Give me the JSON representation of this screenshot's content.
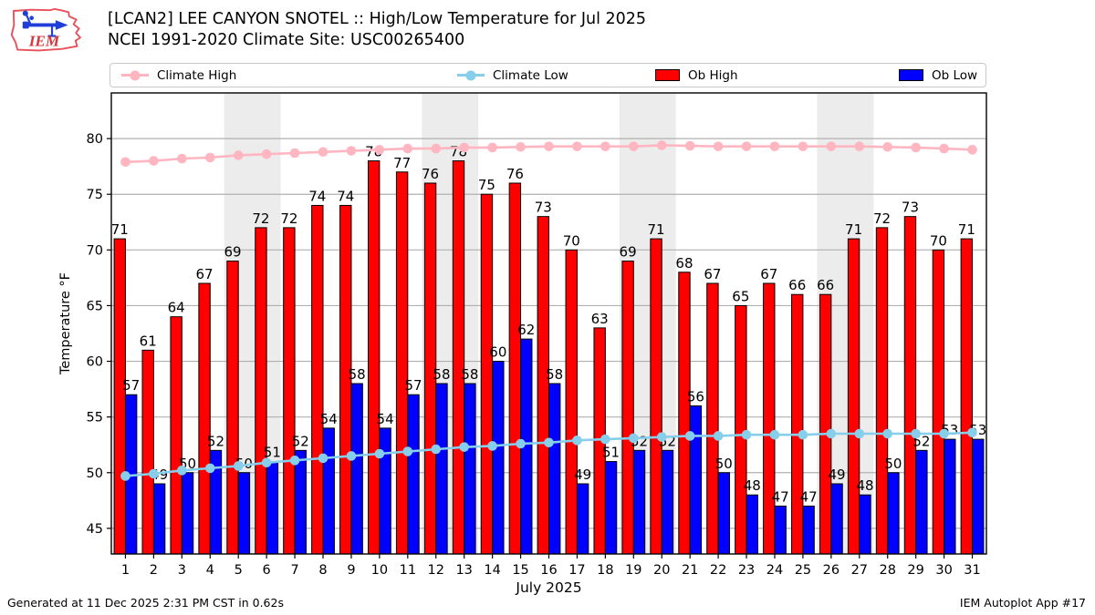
{
  "header": {
    "title": "[LCAN2] LEE CANYON SNOTEL :: High/Low Temperature for Jul 2025",
    "subtitle": "NCEI 1991-2020 Climate Site: USC00265400",
    "logo_text": "IEM"
  },
  "legend": {
    "items": [
      {
        "label": "Climate High",
        "type": "line",
        "color": "#ffb6c1"
      },
      {
        "label": "Climate Low",
        "type": "line",
        "color": "#87ceeb"
      },
      {
        "label": "Ob High",
        "type": "patch",
        "color": "#ff0000"
      },
      {
        "label": "Ob Low",
        "type": "patch",
        "color": "#0000ff"
      }
    ]
  },
  "chart_data": {
    "type": "bar",
    "title": "[LCAN2] LEE CANYON SNOTEL :: High/Low Temperature for Jul 2025",
    "subtitle": "NCEI 1991-2020 Climate Site: USC00265400",
    "xlabel": "July 2025",
    "ylabel": "Temperature °F",
    "x": [
      1,
      2,
      3,
      4,
      5,
      6,
      7,
      8,
      9,
      10,
      11,
      12,
      13,
      14,
      15,
      16,
      17,
      18,
      19,
      20,
      21,
      22,
      23,
      24,
      25,
      26,
      27,
      28,
      29,
      30,
      31
    ],
    "ylim": [
      42.7,
      84.1
    ],
    "yticks": [
      45,
      50,
      55,
      60,
      65,
      70,
      75,
      80
    ],
    "grid": true,
    "legend_position": "top",
    "weekend_shading_days": [
      [
        5,
        6
      ],
      [
        12,
        13
      ],
      [
        19,
        20
      ],
      [
        26,
        27
      ]
    ],
    "band_color": "#ececec",
    "grid_color": "#b0b0b0",
    "series": [
      {
        "name": "Climate High",
        "type": "line",
        "color": "#ffb6c1",
        "values": [
          77.9,
          78.0,
          78.2,
          78.3,
          78.5,
          78.6,
          78.7,
          78.8,
          78.9,
          79.0,
          79.1,
          79.1,
          79.2,
          79.2,
          79.25,
          79.3,
          79.3,
          79.3,
          79.3,
          79.4,
          79.35,
          79.3,
          79.3,
          79.3,
          79.3,
          79.3,
          79.3,
          79.25,
          79.2,
          79.1,
          79.0
        ]
      },
      {
        "name": "Climate Low",
        "type": "line",
        "color": "#87ceeb",
        "values": [
          49.7,
          49.9,
          50.2,
          50.4,
          50.6,
          50.9,
          51.1,
          51.3,
          51.5,
          51.7,
          51.9,
          52.1,
          52.3,
          52.4,
          52.6,
          52.7,
          52.9,
          53.0,
          53.1,
          53.2,
          53.3,
          53.3,
          53.4,
          53.4,
          53.4,
          53.5,
          53.5,
          53.5,
          53.5,
          53.5,
          53.6
        ]
      },
      {
        "name": "Ob High",
        "type": "bar",
        "color": "#ff0000",
        "label_values": true,
        "values": [
          71,
          61,
          64,
          67,
          69,
          72,
          72,
          74,
          74,
          78,
          77,
          76,
          78,
          75,
          76,
          73,
          70,
          63,
          69,
          71,
          68,
          67,
          65,
          67,
          66,
          66,
          71,
          72,
          73,
          70,
          71
        ]
      },
      {
        "name": "Ob Low",
        "type": "bar",
        "color": "#0000ff",
        "label_values": true,
        "values": [
          57,
          49,
          50,
          52,
          50,
          51,
          52,
          54,
          58,
          54,
          57,
          58,
          58,
          60,
          62,
          58,
          49,
          51,
          52,
          52,
          56,
          50,
          48,
          47,
          47,
          49,
          48,
          50,
          52,
          53,
          53
        ]
      }
    ]
  },
  "footer": {
    "left": "Generated at 11 Dec 2025 2:31 PM CST in 0.62s",
    "right": "IEM Autoplot App #17"
  }
}
